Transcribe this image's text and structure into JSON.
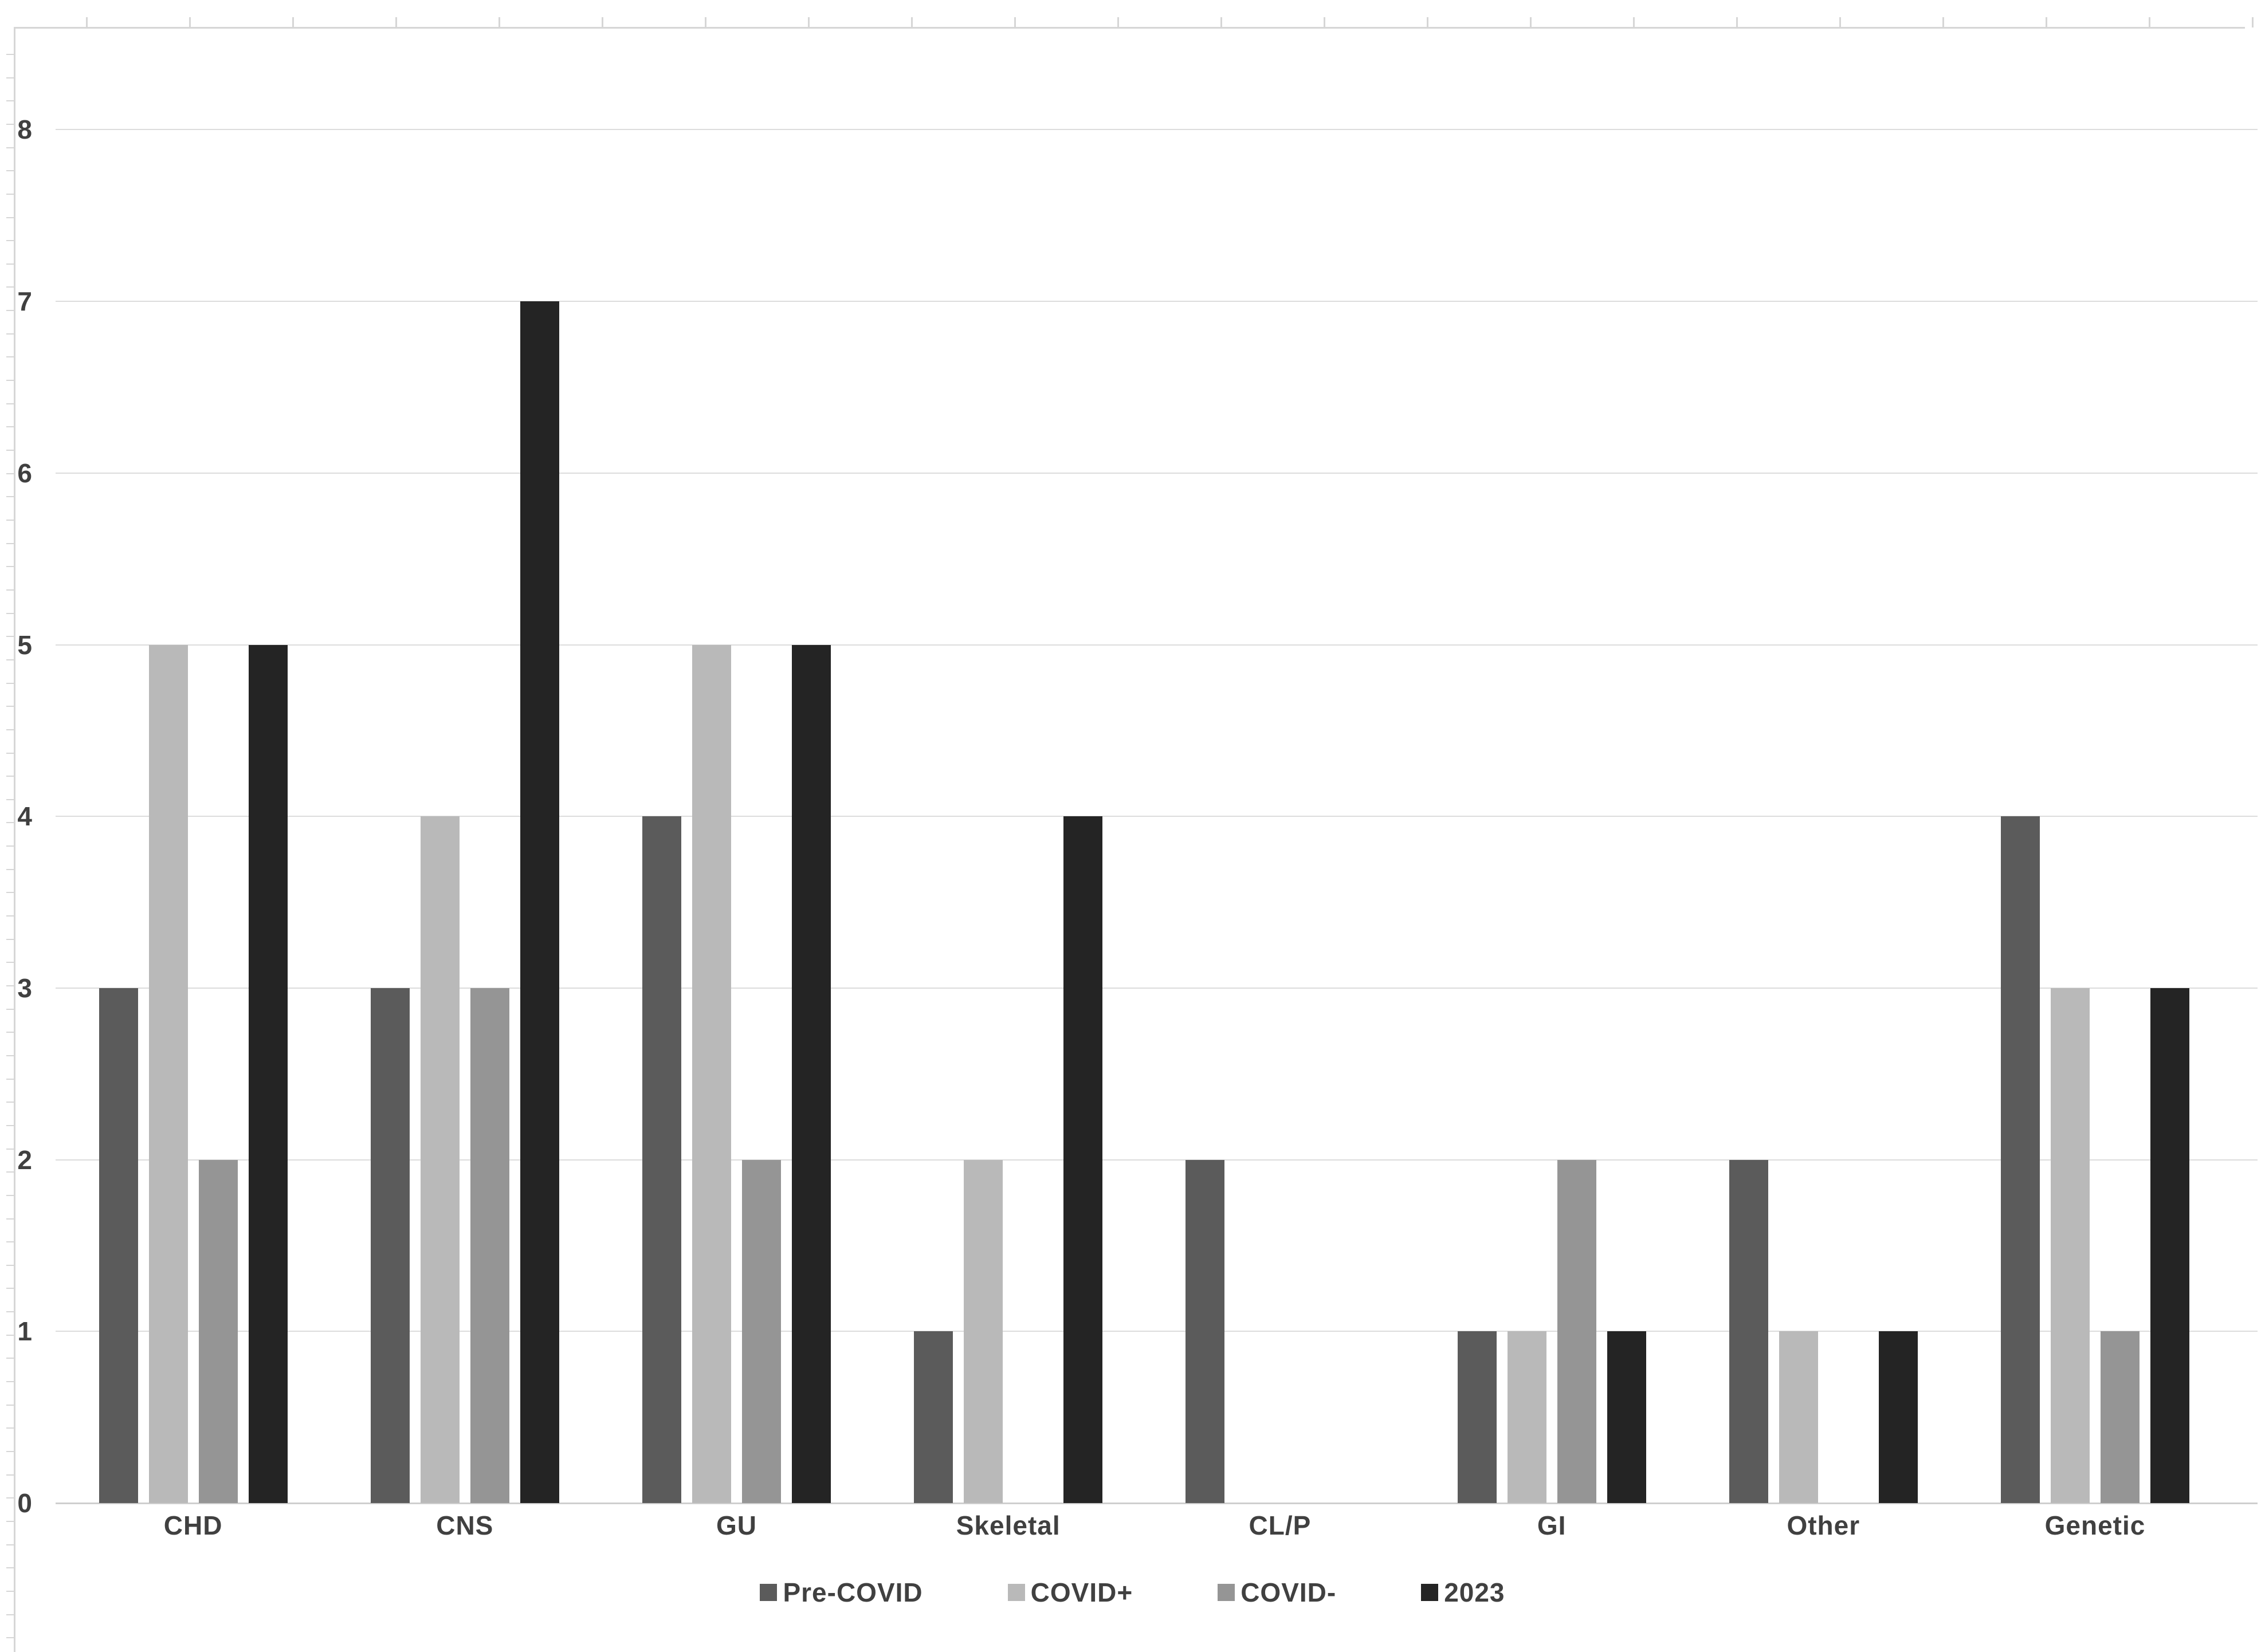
{
  "chart_data": {
    "type": "bar",
    "title": "",
    "xlabel": "",
    "ylabel": "",
    "categories": [
      "CHD",
      "CNS",
      "GU",
      "Skeletal",
      "CL/P",
      "GI",
      "Other",
      "Genetic"
    ],
    "series": [
      {
        "name": "Pre-COVID",
        "color": "#5b5b5b",
        "values": [
          3,
          3,
          4,
          1,
          2,
          1,
          2,
          4
        ]
      },
      {
        "name": "COVID+",
        "color": "#b9b9b9",
        "values": [
          5,
          4,
          5,
          2,
          0,
          1,
          1,
          3
        ]
      },
      {
        "name": "COVID-",
        "color": "#959595",
        "values": [
          2,
          3,
          2,
          0,
          0,
          2,
          0,
          1
        ]
      },
      {
        "name": "2023",
        "color": "#242424",
        "values": [
          5,
          7,
          5,
          4,
          0,
          1,
          1,
          3
        ]
      }
    ],
    "y_axis": {
      "min": 0,
      "max": 8,
      "major_unit": 1,
      "tick_labels": [
        "0",
        "1",
        "2",
        "3",
        "4",
        "5",
        "6",
        "7",
        "8"
      ]
    },
    "grid": true,
    "legend_position": "bottom",
    "style": {
      "background": "#ffffff",
      "gridline_color": "#dcdcdc",
      "axis_color": "#d6d6d6",
      "label_color": "#404040"
    }
  }
}
